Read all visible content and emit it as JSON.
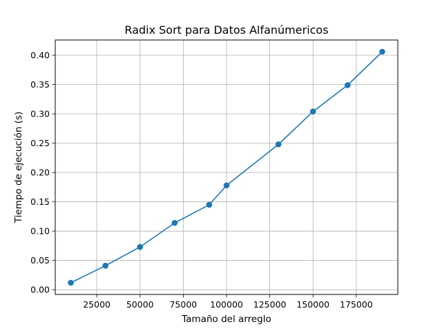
{
  "chart_data": {
    "type": "line",
    "title": "Radix Sort para Datos Alfanúmericos",
    "xlabel": "Tamaño del arreglo",
    "ylabel": "Tiempo de ejecución (s)",
    "xlim": [
      1000,
      199000
    ],
    "ylim": [
      -0.008,
      0.426
    ],
    "grid": true,
    "x_ticks": [
      25000,
      50000,
      75000,
      100000,
      125000,
      150000,
      175000
    ],
    "x_tick_labels": [
      "25000",
      "50000",
      "75000",
      "100000",
      "125000",
      "150000",
      "175000"
    ],
    "y_ticks": [
      0.0,
      0.05,
      0.1,
      0.15,
      0.2,
      0.25,
      0.3,
      0.35,
      0.4
    ],
    "y_tick_labels": [
      "0.00",
      "0.05",
      "0.10",
      "0.15",
      "0.20",
      "0.25",
      "0.30",
      "0.35",
      "0.40"
    ],
    "series": [
      {
        "color": "#1f77b4",
        "marker": "circle",
        "x": [
          10000,
          30000,
          50000,
          70000,
          90000,
          100000,
          130000,
          150000,
          170000,
          190000
        ],
        "y": [
          0.012,
          0.041,
          0.073,
          0.114,
          0.145,
          0.178,
          0.248,
          0.304,
          0.349,
          0.406
        ]
      }
    ]
  }
}
